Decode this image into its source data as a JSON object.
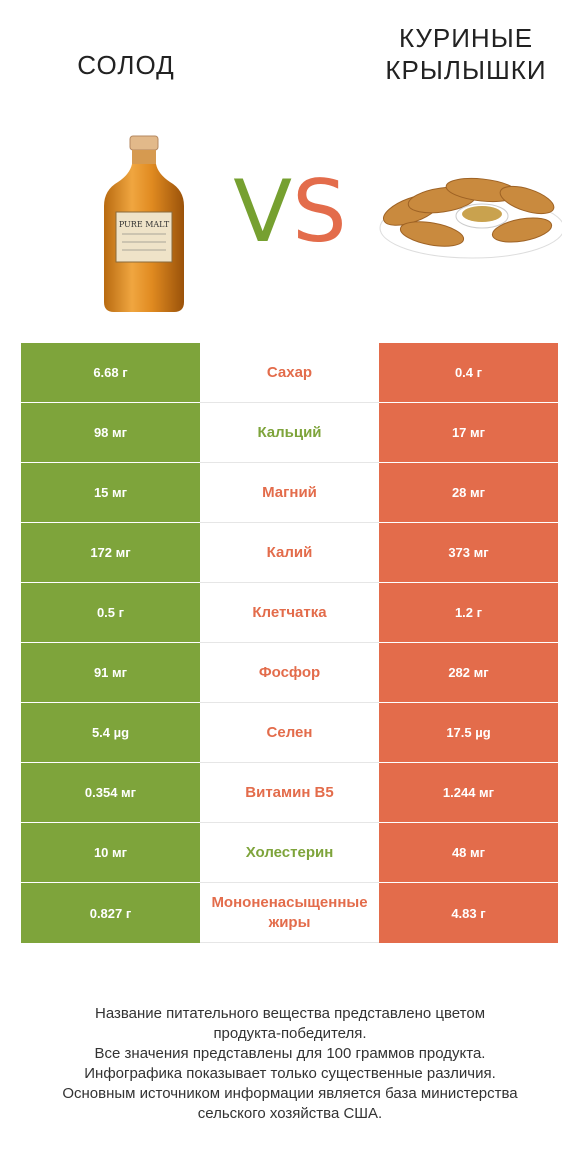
{
  "header": {
    "left_title": "СОЛОД",
    "right_title_line1": "КУРИНЫЕ",
    "right_title_line2": "КРЫЛЫШКИ",
    "vs_v": "V",
    "vs_s": "S"
  },
  "colors": {
    "left": "#7ea43b",
    "right": "#e36c4b"
  },
  "images": {
    "left": {
      "name": "whisky-bottle-image",
      "label_line1": "PURE MALT"
    },
    "right": {
      "name": "chicken-wings-image"
    }
  },
  "rows": [
    {
      "left": "6.68 г",
      "nutrient": "Сахар",
      "right": "0.4 г",
      "winner": "right"
    },
    {
      "left": "98 мг",
      "nutrient": "Кальций",
      "right": "17 мг",
      "winner": "left"
    },
    {
      "left": "15 мг",
      "nutrient": "Магний",
      "right": "28 мг",
      "winner": "right"
    },
    {
      "left": "172 мг",
      "nutrient": "Калий",
      "right": "373 мг",
      "winner": "right"
    },
    {
      "left": "0.5 г",
      "nutrient": "Клетчатка",
      "right": "1.2 г",
      "winner": "right"
    },
    {
      "left": "91 мг",
      "nutrient": "Фосфор",
      "right": "282 мг",
      "winner": "right"
    },
    {
      "left": "5.4 µg",
      "nutrient": "Селен",
      "right": "17.5 µg",
      "winner": "right"
    },
    {
      "left": "0.354 мг",
      "nutrient": "Витамин B5",
      "right": "1.244 мг",
      "winner": "right"
    },
    {
      "left": "10 мг",
      "nutrient": "Холестерин",
      "right": "48 мг",
      "winner": "left"
    },
    {
      "left": "0.827 г",
      "nutrient": "Мононенасыщенные жиры",
      "right": "4.83 г",
      "winner": "right"
    }
  ],
  "footer": {
    "line1": "Название питательного вещества представлено цветом",
    "line2": "продукта-победителя.",
    "line3": "Все значения представлены для 100 граммов продукта.",
    "line4": "Инфографика показывает только существенные различия.",
    "line5": "Основным источником информации является база министерства",
    "line6": "сельского хозяйства США."
  }
}
